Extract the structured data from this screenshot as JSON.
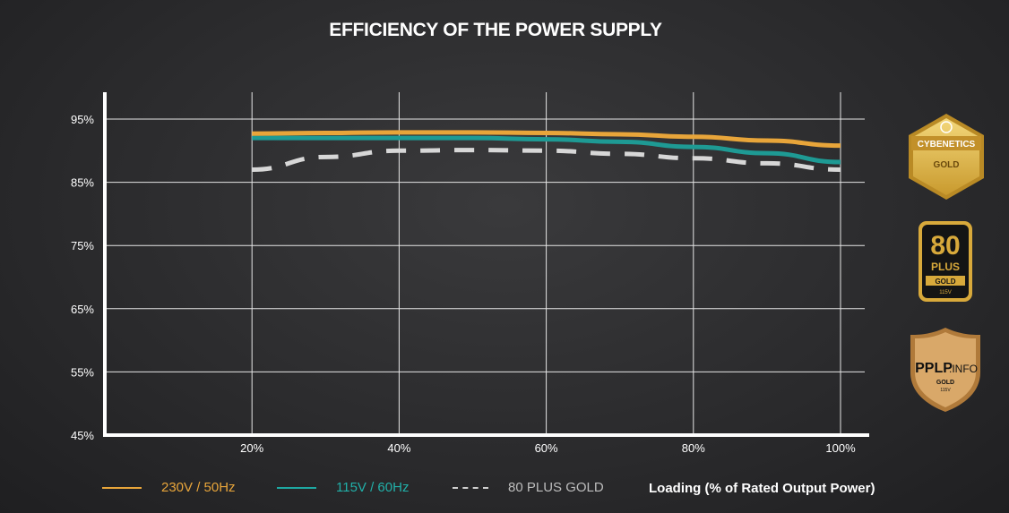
{
  "title": "EFFICIENCY OF THE POWER SUPPLY",
  "xlabel": "Loading (% of Rated Output Power)",
  "badges": {
    "cybenetics": {
      "line1": "CYBENETICS",
      "line2": "GOLD"
    },
    "plus80": {
      "line1": "80",
      "line2": "PLUS",
      "line3": "GOLD",
      "line4": "115V"
    },
    "pplp": {
      "line1": "PPLP",
      "line2": ".INFO",
      "line3": "GOLD",
      "line4": "115V"
    }
  },
  "colors": {
    "s230": "#e8a53a",
    "s115": "#1e9a94",
    "gold80": "#d7d7d7",
    "grid": "#ffffff",
    "background": "#2b2b2d"
  },
  "chart_data": {
    "type": "line",
    "title": "EFFICIENCY OF THE POWER SUPPLY",
    "xlabel": "Loading (% of Rated Output Power)",
    "ylabel": "",
    "x": [
      20,
      30,
      40,
      50,
      60,
      70,
      80,
      90,
      100
    ],
    "xlim": [
      0,
      100
    ],
    "ylim": [
      45,
      100
    ],
    "xticks": [
      20,
      40,
      60,
      80,
      100
    ],
    "xtick_labels": [
      "20%",
      "40%",
      "60%",
      "80%",
      "100%"
    ],
    "yticks": [
      45,
      55,
      65,
      75,
      85,
      95
    ],
    "ytick_labels": [
      "45%",
      "55%",
      "65%",
      "75%",
      "85%",
      "95%"
    ],
    "grid": true,
    "legend_position": "bottom",
    "series": [
      {
        "name": "230V / 50Hz",
        "style": "solid",
        "values": [
          92.7,
          92.8,
          92.9,
          92.9,
          92.8,
          92.6,
          92.2,
          91.6,
          90.8
        ]
      },
      {
        "name": "115V / 60Hz",
        "style": "solid",
        "values": [
          92.0,
          92.0,
          92.0,
          92.0,
          91.8,
          91.4,
          90.6,
          89.6,
          88.2
        ]
      },
      {
        "name": "80 PLUS GOLD",
        "style": "dashed",
        "values": [
          87.0,
          89.0,
          90.0,
          90.1,
          90.0,
          89.5,
          88.8,
          88.0,
          87.0
        ]
      }
    ]
  }
}
